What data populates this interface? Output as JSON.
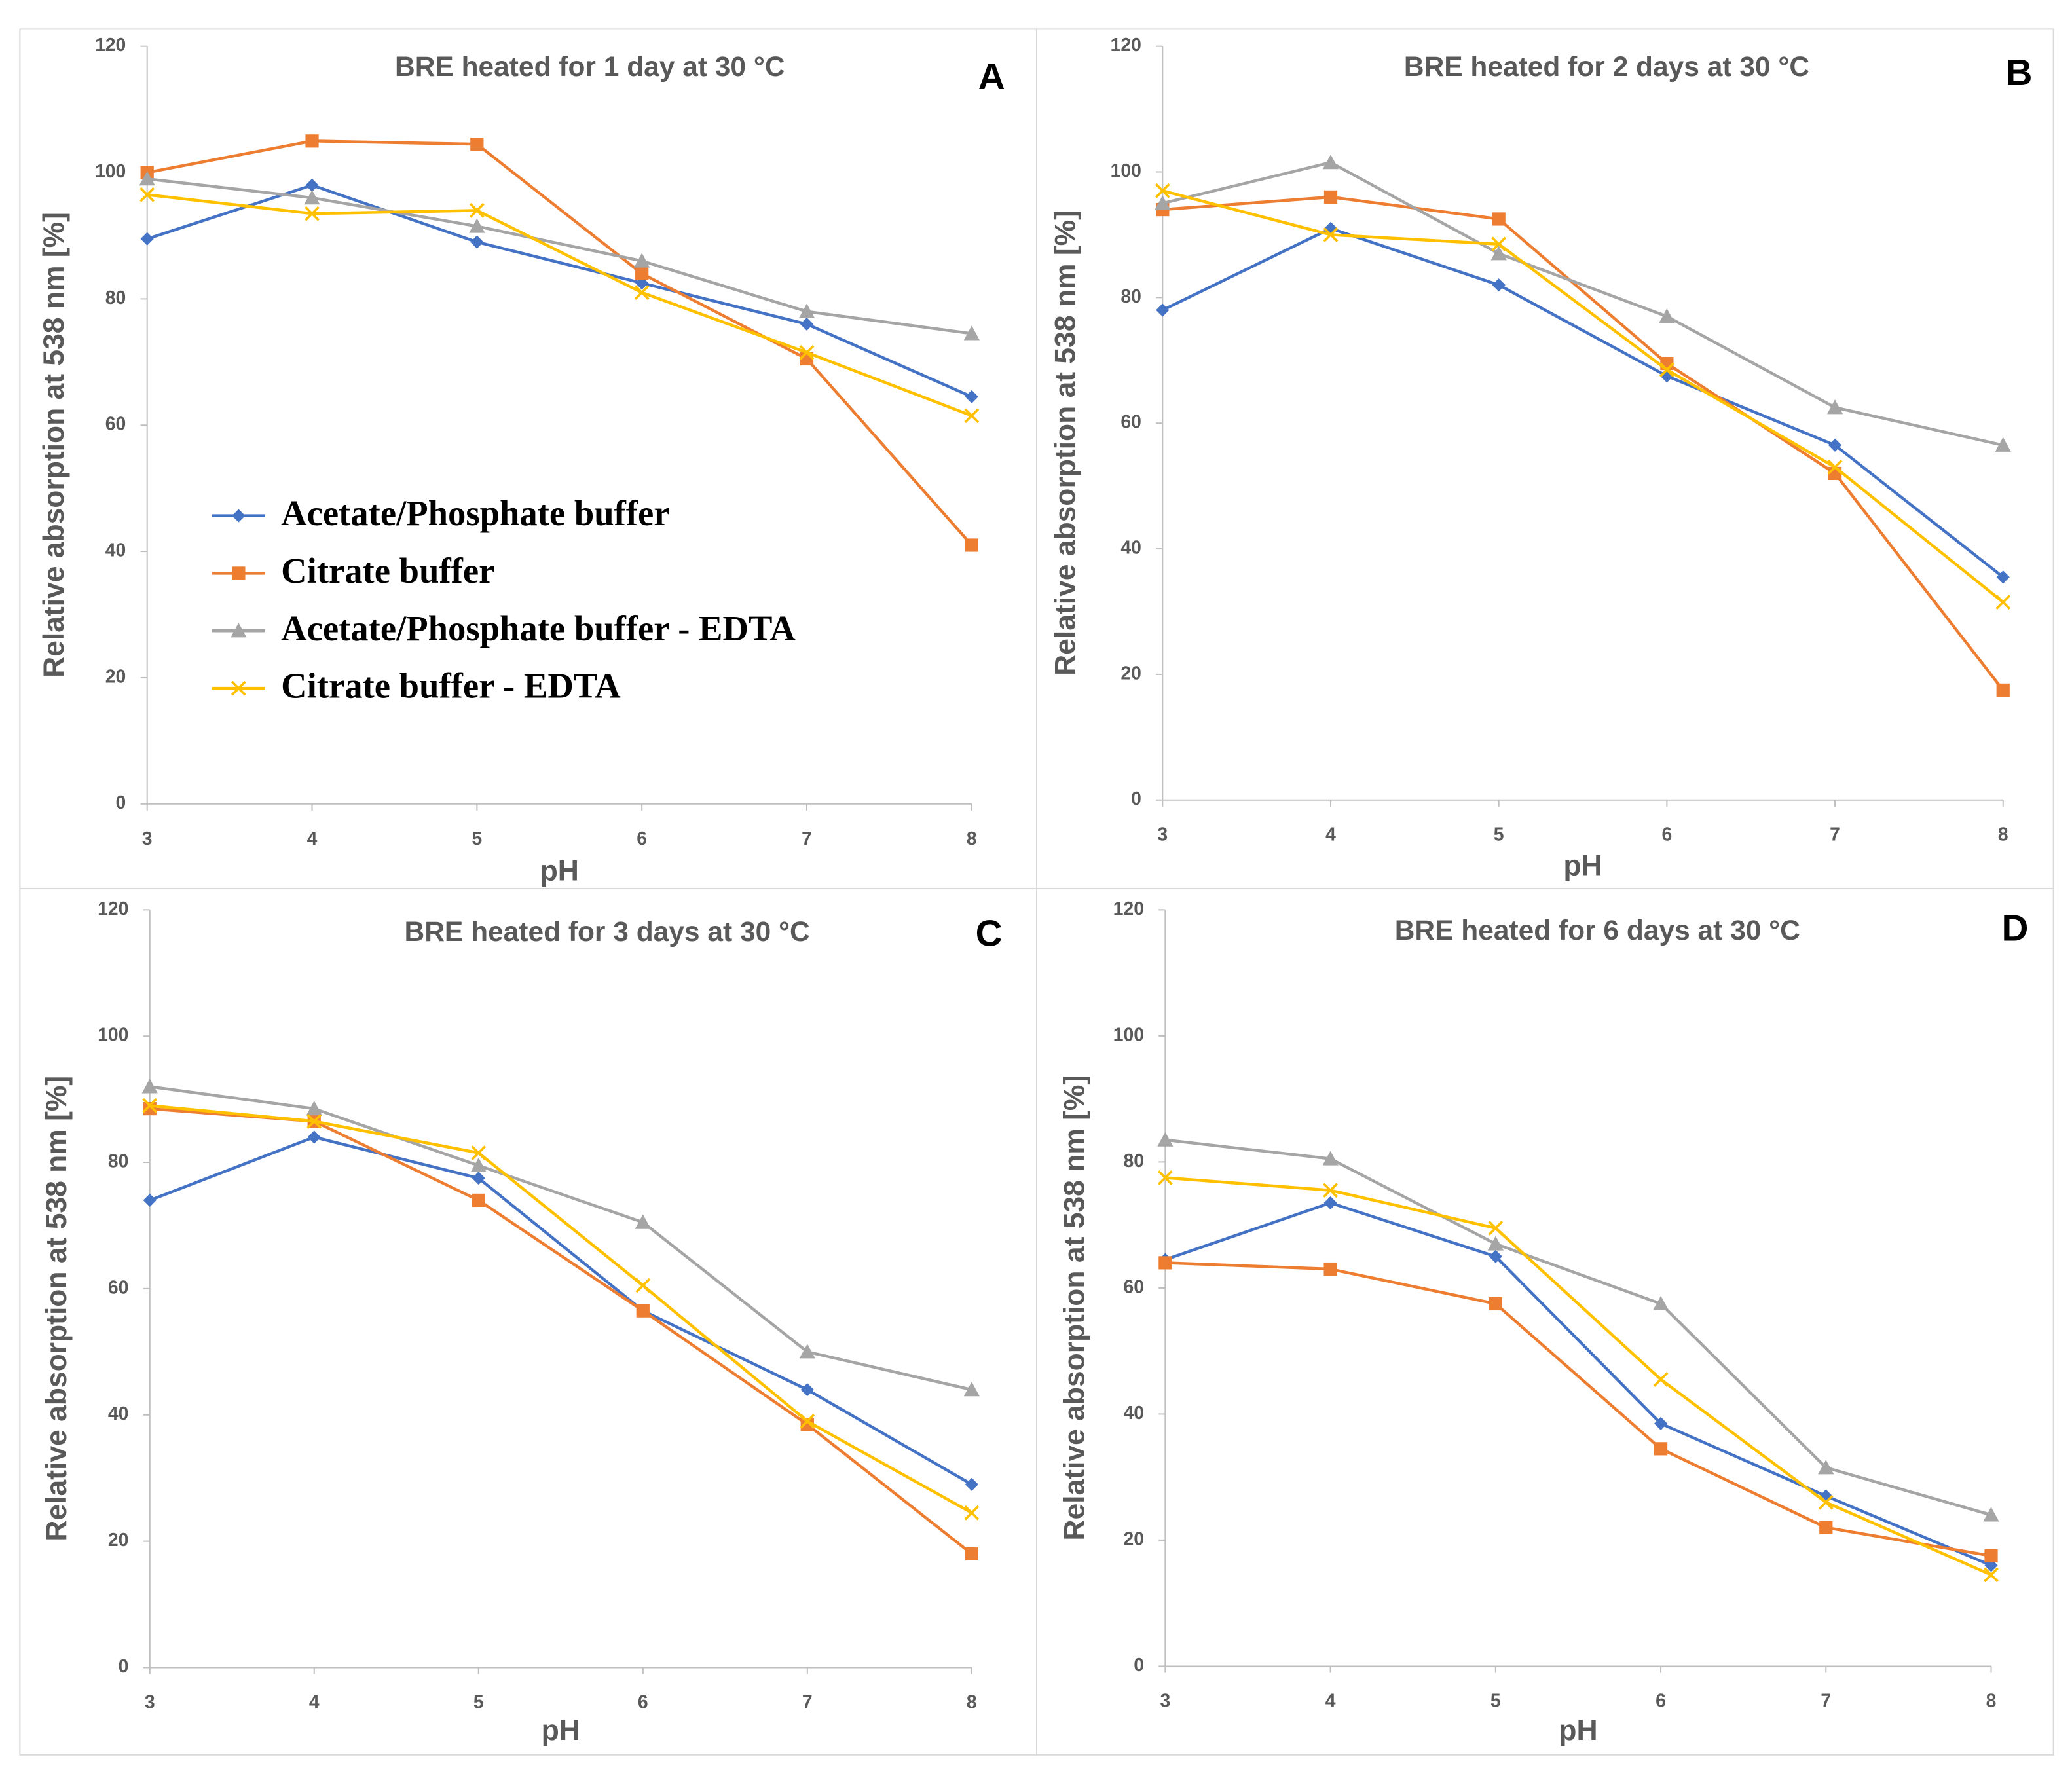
{
  "chart_data": [
    {
      "type": "line",
      "panel": "A",
      "title": "BRE heated for 1 day at 30 °C",
      "xlabel": "pH",
      "ylabel": "Relative absorption at 538 nm [%]",
      "x": [
        3,
        4,
        5,
        6,
        7,
        8
      ],
      "xlim": [
        3,
        8
      ],
      "xticks": [
        3,
        4,
        5,
        6,
        7,
        8
      ],
      "ylim": [
        0,
        120
      ],
      "yticks": [
        0,
        20,
        40,
        60,
        80,
        100,
        120
      ],
      "legend": "left",
      "series": [
        {
          "name": "Acetate/Phosphate buffer",
          "color": "#4472c4",
          "marker": "diamond",
          "values": [
            89.5,
            98,
            89,
            82.5,
            76,
            64.5
          ]
        },
        {
          "name": "Citrate buffer",
          "color": "#ed7d31",
          "marker": "square",
          "values": [
            100,
            105,
            104.5,
            84,
            70.5,
            41
          ]
        },
        {
          "name": "Acetate/Phosphate buffer - EDTA",
          "color": "#a5a5a5",
          "marker": "triangle",
          "values": [
            99,
            96,
            91.5,
            86,
            78,
            74.5
          ]
        },
        {
          "name": "Citrate buffer - EDTA",
          "color": "#ffc000",
          "marker": "x",
          "values": [
            96.5,
            93.5,
            94,
            81,
            71.5,
            61.5
          ]
        }
      ]
    },
    {
      "type": "line",
      "panel": "B",
      "title": "BRE heated for 2 days at 30 °C",
      "xlabel": "pH",
      "ylabel": "Relative absorption at 538 nm [%]",
      "x": [
        3,
        4,
        5,
        6,
        7,
        8
      ],
      "xlim": [
        3,
        8
      ],
      "xticks": [
        3,
        4,
        5,
        6,
        7,
        8
      ],
      "ylim": [
        0,
        120
      ],
      "yticks": [
        0,
        20,
        40,
        60,
        80,
        100,
        120
      ],
      "series": [
        {
          "color": "#4472c4",
          "marker": "diamond",
          "values": [
            78,
            91,
            82,
            67.5,
            56.5,
            35.5
          ]
        },
        {
          "color": "#ed7d31",
          "marker": "square",
          "values": [
            94,
            96,
            92.5,
            69.5,
            52,
            17.5
          ]
        },
        {
          "color": "#a5a5a5",
          "marker": "triangle",
          "values": [
            95,
            101.5,
            87,
            77,
            62.5,
            56.5
          ]
        },
        {
          "color": "#ffc000",
          "marker": "x",
          "values": [
            97,
            90,
            88.5,
            68.5,
            53,
            31.5
          ]
        }
      ]
    },
    {
      "type": "line",
      "panel": "C",
      "title": "BRE heated for 3 days at 30 °C",
      "xlabel": "pH",
      "ylabel": "Relative absorption at 538 nm [%]",
      "x": [
        3,
        4,
        5,
        6,
        7,
        8
      ],
      "xlim": [
        3,
        8
      ],
      "xticks": [
        3,
        4,
        5,
        6,
        7,
        8
      ],
      "ylim": [
        0,
        120
      ],
      "yticks": [
        0,
        20,
        40,
        60,
        80,
        100,
        120
      ],
      "series": [
        {
          "color": "#4472c4",
          "marker": "diamond",
          "values": [
            74,
            84,
            77.5,
            56.5,
            44,
            29
          ]
        },
        {
          "color": "#ed7d31",
          "marker": "square",
          "values": [
            88.5,
            86.5,
            74,
            56.5,
            38.5,
            18
          ]
        },
        {
          "color": "#a5a5a5",
          "marker": "triangle",
          "values": [
            92,
            88.5,
            79.5,
            70.5,
            50,
            44
          ]
        },
        {
          "color": "#ffc000",
          "marker": "x",
          "values": [
            89,
            86.5,
            81.5,
            60.5,
            39,
            24.5
          ]
        }
      ]
    },
    {
      "type": "line",
      "panel": "D",
      "title": "BRE heated for 6 days at 30 °C",
      "xlabel": "pH",
      "ylabel": "Relative absorption at 538 nm [%]",
      "x": [
        3,
        4,
        5,
        6,
        7,
        8
      ],
      "xlim": [
        3,
        8
      ],
      "xticks": [
        3,
        4,
        5,
        6,
        7,
        8
      ],
      "ylim": [
        0,
        120
      ],
      "yticks": [
        0,
        20,
        40,
        60,
        80,
        100,
        120
      ],
      "series": [
        {
          "color": "#4472c4",
          "marker": "diamond",
          "values": [
            64.5,
            73.5,
            65,
            38.5,
            27,
            16
          ]
        },
        {
          "color": "#ed7d31",
          "marker": "square",
          "values": [
            64,
            63,
            57.5,
            34.5,
            22,
            17.5
          ]
        },
        {
          "color": "#a5a5a5",
          "marker": "triangle",
          "values": [
            83.5,
            80.5,
            67,
            57.5,
            31.5,
            24
          ]
        },
        {
          "color": "#ffc000",
          "marker": "x",
          "values": [
            77.5,
            75.5,
            69.5,
            45.5,
            26,
            14.5
          ]
        }
      ]
    }
  ]
}
